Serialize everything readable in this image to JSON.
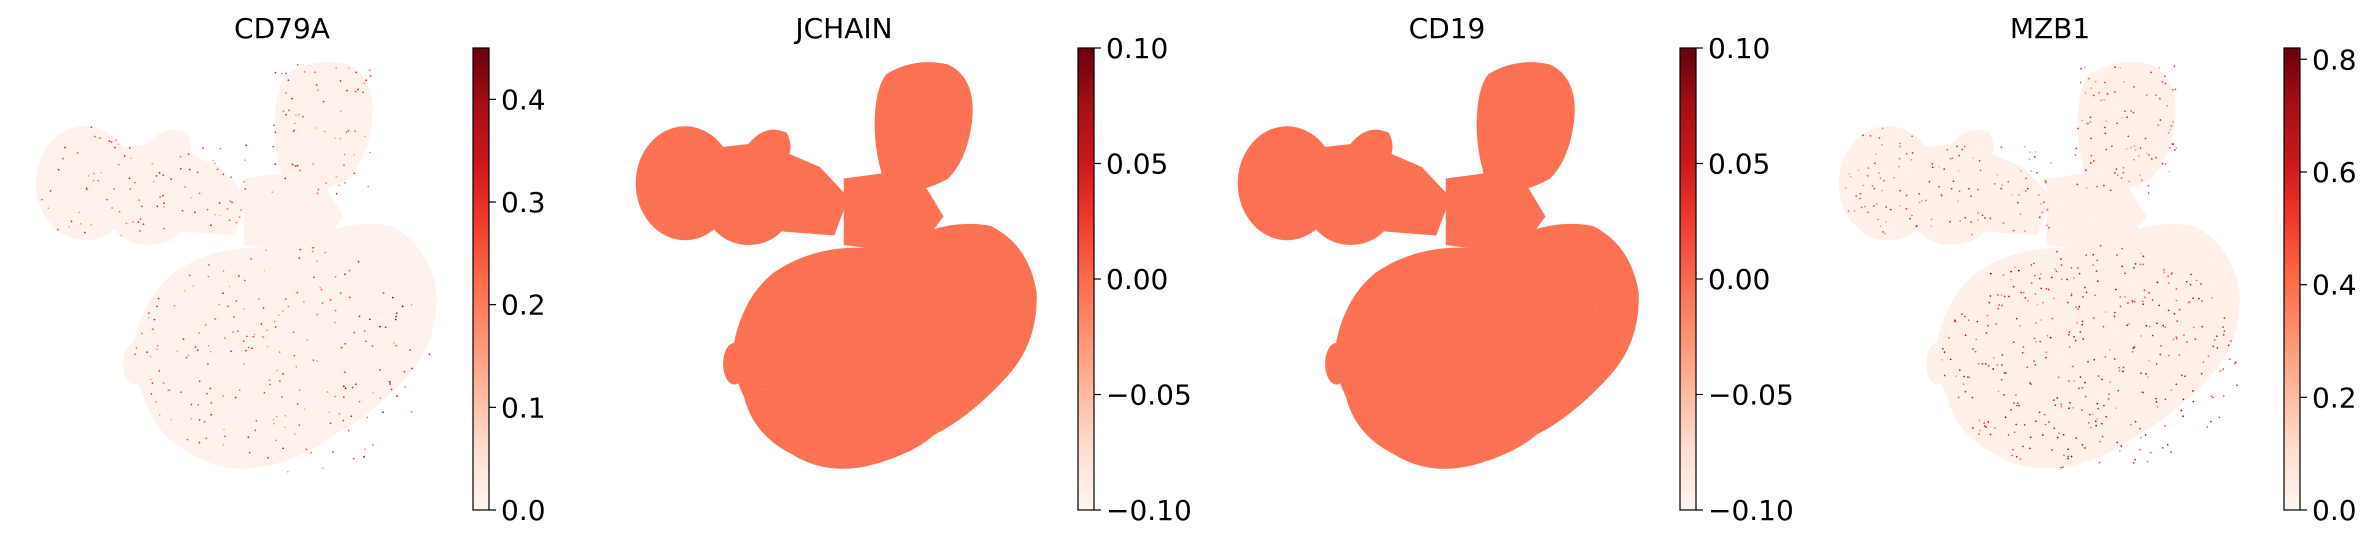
{
  "chart_data": [
    {
      "type": "scatter",
      "title": "CD79A",
      "colormap": "Reds",
      "colorbar": {
        "min": 0.0,
        "max": 0.45,
        "ticks": [
          "0.0",
          "0.1",
          "0.2",
          "0.3",
          "0.4"
        ],
        "tick_values": [
          0.0,
          0.1,
          0.2,
          0.3,
          0.4
        ]
      },
      "points": "continuous",
      "base_level": 0.03,
      "sparse_fraction": 0.05
    },
    {
      "type": "scatter",
      "title": "JCHAIN",
      "colormap": "Reds",
      "colorbar": {
        "min": -0.1,
        "max": 0.1,
        "ticks": [
          "0.10",
          "0.05",
          "0.00",
          "−0.05",
          "−0.10"
        ],
        "tick_values": [
          0.1,
          0.05,
          0.0,
          -0.05,
          -0.1
        ]
      },
      "points": "constant",
      "constant_value": 0.0
    },
    {
      "type": "scatter",
      "title": "CD19",
      "colormap": "Reds",
      "colorbar": {
        "min": -0.1,
        "max": 0.1,
        "ticks": [
          "0.10",
          "0.05",
          "0.00",
          "−0.05",
          "−0.10"
        ],
        "tick_values": [
          0.1,
          0.05,
          0.0,
          -0.05,
          -0.1
        ]
      },
      "points": "constant",
      "constant_value": 0.0
    },
    {
      "type": "scatter",
      "title": "MZB1",
      "colormap": "Reds",
      "colorbar": {
        "min": 0.0,
        "max": 0.82,
        "ticks": [
          "0.8",
          "0.6",
          "0.4",
          "0.2",
          "0.0"
        ],
        "tick_values": [
          0.8,
          0.6,
          0.4,
          0.2,
          0.0
        ]
      },
      "points": "continuous",
      "base_level": 0.04,
      "sparse_fraction": 0.08
    }
  ],
  "colors": {
    "reds_low": "#fff5f0",
    "reds_mid": "#fb6a4a",
    "reds_high": "#67000d"
  }
}
